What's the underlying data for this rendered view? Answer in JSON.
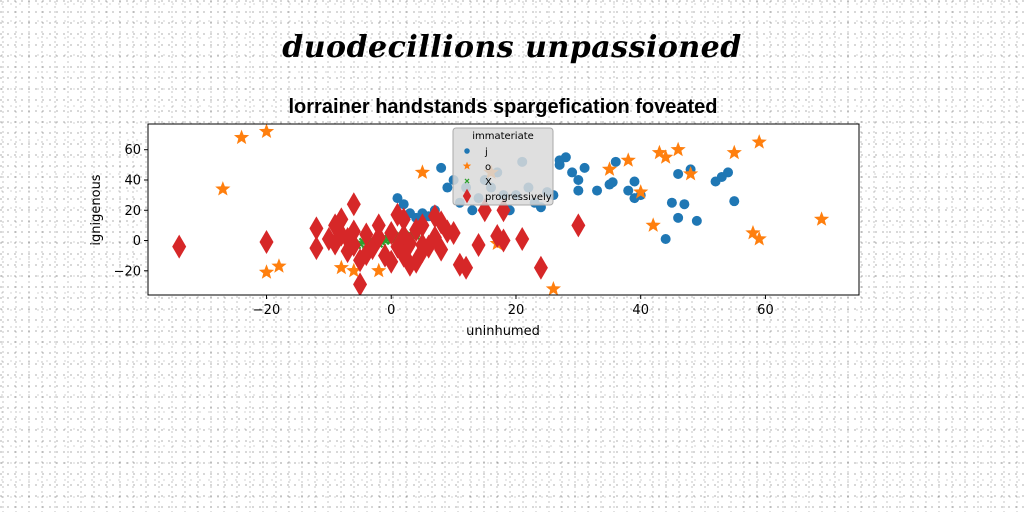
{
  "figure": {
    "suptitle": "duodecillions unpassioned"
  },
  "chart_data": {
    "type": "scatter",
    "title": "lorrainer handstands spargefication foveated",
    "xlabel": "uninhumed",
    "ylabel": "ignigenous",
    "xlim": [
      -39,
      75
    ],
    "ylim": [
      -36,
      77
    ],
    "xticks": [
      -20,
      0,
      20,
      40,
      60
    ],
    "yticks": [
      -20,
      0,
      20,
      40,
      60
    ],
    "grid": false,
    "legend": {
      "title": "immateriate",
      "placement": "upper-center"
    },
    "series": [
      {
        "name": "j",
        "marker": "circle",
        "color": "#1f77b4",
        "points": [
          [
            1,
            28
          ],
          [
            2,
            24
          ],
          [
            3,
            18
          ],
          [
            4,
            15
          ],
          [
            5,
            18
          ],
          [
            6,
            16
          ],
          [
            7,
            20
          ],
          [
            8,
            48
          ],
          [
            9,
            35
          ],
          [
            10,
            40
          ],
          [
            11,
            25
          ],
          [
            12,
            35
          ],
          [
            13,
            20
          ],
          [
            14,
            28
          ],
          [
            15,
            40
          ],
          [
            16,
            35
          ],
          [
            17,
            45
          ],
          [
            18,
            30
          ],
          [
            19,
            20
          ],
          [
            20,
            30
          ],
          [
            21,
            52
          ],
          [
            22,
            35
          ],
          [
            23,
            25
          ],
          [
            24,
            22
          ],
          [
            25,
            32
          ],
          [
            26,
            30
          ],
          [
            27,
            50
          ],
          [
            27,
            53
          ],
          [
            28,
            55
          ],
          [
            29,
            45
          ],
          [
            30,
            40
          ],
          [
            30,
            33
          ],
          [
            33,
            33
          ],
          [
            35,
            37
          ],
          [
            36,
            52
          ],
          [
            38,
            33
          ],
          [
            39,
            39
          ],
          [
            40,
            30
          ],
          [
            44,
            1
          ],
          [
            45,
            25
          ],
          [
            46,
            15
          ],
          [
            46,
            44
          ],
          [
            47,
            24
          ],
          [
            48,
            47
          ],
          [
            49,
            13
          ],
          [
            52,
            39
          ],
          [
            53,
            42
          ],
          [
            54,
            45
          ],
          [
            55,
            26
          ],
          [
            35.5,
            38.5
          ],
          [
            31,
            48
          ],
          [
            39,
            28
          ]
        ]
      },
      {
        "name": "o",
        "marker": "star",
        "color": "#ff7f0e",
        "points": [
          [
            -27,
            34
          ],
          [
            -24,
            68
          ],
          [
            -20,
            72
          ],
          [
            -20,
            -21
          ],
          [
            -18,
            -17
          ],
          [
            -8,
            -18
          ],
          [
            -6,
            -20
          ],
          [
            -2,
            -20
          ],
          [
            5,
            45
          ],
          [
            16,
            45
          ],
          [
            17,
            -2
          ],
          [
            26,
            -32
          ],
          [
            35,
            47
          ],
          [
            38,
            53
          ],
          [
            40,
            32
          ],
          [
            42,
            10
          ],
          [
            43,
            58
          ],
          [
            44,
            55
          ],
          [
            46,
            60
          ],
          [
            48,
            44
          ],
          [
            55,
            58
          ],
          [
            58,
            5
          ],
          [
            59,
            1
          ],
          [
            59,
            65
          ],
          [
            69,
            14
          ]
        ]
      },
      {
        "name": "X",
        "marker": "x",
        "color": "#2ca02c",
        "points": [
          [
            -5,
            -2
          ],
          [
            -4.5,
            -1
          ],
          [
            -4,
            0
          ],
          [
            -3.5,
            -2
          ],
          [
            -3,
            0
          ],
          [
            -2.5,
            -1
          ],
          [
            -2,
            1
          ],
          [
            -1.5,
            -1
          ],
          [
            -1,
            0
          ],
          [
            -0.5,
            1
          ],
          [
            0,
            0
          ],
          [
            0.5,
            2
          ],
          [
            1,
            1
          ],
          [
            1.5,
            3
          ],
          [
            2,
            2
          ],
          [
            2.5,
            1
          ],
          [
            3,
            4
          ],
          [
            3.5,
            3
          ],
          [
            4,
            5
          ],
          [
            -6,
            -3
          ],
          [
            -6.5,
            -2
          ],
          [
            -5.5,
            -3
          ],
          [
            -4,
            -3
          ],
          [
            -3,
            -2
          ],
          [
            -2,
            -2
          ],
          [
            0,
            2
          ],
          [
            1,
            3
          ],
          [
            2,
            4
          ],
          [
            3,
            2
          ],
          [
            4,
            3
          ]
        ]
      },
      {
        "name": "progressively",
        "marker": "thin_diamond",
        "color": "#d62728",
        "points": [
          [
            -34,
            -4
          ],
          [
            -20,
            -1
          ],
          [
            -12,
            8
          ],
          [
            -12,
            -5
          ],
          [
            -10,
            1
          ],
          [
            -9,
            10
          ],
          [
            -9,
            -2
          ],
          [
            -8,
            14
          ],
          [
            -8,
            4
          ],
          [
            -7,
            1
          ],
          [
            -7,
            -7
          ],
          [
            -6,
            6
          ],
          [
            -6,
            24
          ],
          [
            -6,
            -3
          ],
          [
            -5,
            -29
          ],
          [
            -5,
            -13
          ],
          [
            -4,
            -9
          ],
          [
            -4,
            4
          ],
          [
            -3,
            -5
          ],
          [
            -2,
            2
          ],
          [
            -2,
            10
          ],
          [
            -1,
            -10
          ],
          [
            0,
            -14
          ],
          [
            0,
            5
          ],
          [
            1,
            17
          ],
          [
            1,
            -4
          ],
          [
            2,
            14
          ],
          [
            2,
            3
          ],
          [
            2,
            -10
          ],
          [
            3,
            -16
          ],
          [
            3,
            -2
          ],
          [
            4,
            -14
          ],
          [
            4,
            7
          ],
          [
            5,
            -7
          ],
          [
            5,
            10
          ],
          [
            5,
            -3
          ],
          [
            6,
            -4
          ],
          [
            7,
            2
          ],
          [
            7,
            16
          ],
          [
            8,
            12
          ],
          [
            8,
            -6
          ],
          [
            9,
            6
          ],
          [
            10,
            5
          ],
          [
            11,
            -16
          ],
          [
            12,
            -18
          ],
          [
            14,
            -3
          ],
          [
            15,
            20
          ],
          [
            17,
            3
          ],
          [
            18,
            20
          ],
          [
            18,
            0
          ],
          [
            21,
            1
          ],
          [
            24,
            -18
          ],
          [
            30,
            10
          ]
        ]
      }
    ]
  }
}
